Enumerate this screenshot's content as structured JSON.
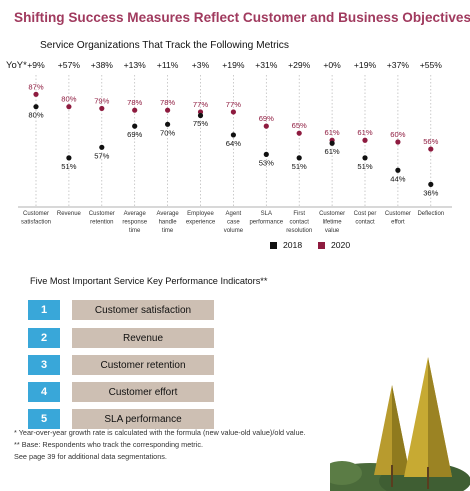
{
  "header": {
    "title": "Shifting Success Measures Reflect Customer and Business Objectives",
    "subtitle": "Service Organizations That Track the Following Metrics"
  },
  "chart_data": {
    "type": "scatter",
    "title": "Service Organizations That Track the Following Metrics",
    "yoy_label": "YoY*",
    "categories": [
      [
        "Customer",
        "satisfaction"
      ],
      [
        "Revenue"
      ],
      [
        "Customer",
        "retention"
      ],
      [
        "Average",
        "response",
        "time"
      ],
      [
        "Average",
        "handle",
        "time"
      ],
      [
        "Employee",
        "experience"
      ],
      [
        "Agent",
        "case",
        "volume"
      ],
      [
        "SLA",
        "performance"
      ],
      [
        "First",
        "contact",
        "resolution"
      ],
      [
        "Customer",
        "lifetime",
        "value"
      ],
      [
        "Cost per",
        "contact"
      ],
      [
        "Customer",
        "effort"
      ],
      [
        "Deflection"
      ]
    ],
    "yoy": [
      "+9%",
      "+57%",
      "+38%",
      "+13%",
      "+11%",
      "+3%",
      "+19%",
      "+31%",
      "+29%",
      "+0%",
      "+19%",
      "+37%",
      "+55%"
    ],
    "series": [
      {
        "name": "2018",
        "color": "#111111",
        "values": [
          80,
          51,
          57,
          69,
          70,
          75,
          64,
          53,
          51,
          61,
          51,
          44,
          36
        ]
      },
      {
        "name": "2020",
        "color": "#8e1b3f",
        "values": [
          87,
          80,
          79,
          78,
          78,
          77,
          77,
          69,
          65,
          61,
          61,
          60,
          56
        ]
      }
    ],
    "ylim": [
      30,
      90
    ],
    "grid": "vertical dotted",
    "legend": "bottom-right"
  },
  "kpi": {
    "title": "Five Most Important Service Key Performance Indicators**",
    "items": [
      {
        "rank": "1",
        "label": "Customer satisfaction"
      },
      {
        "rank": "2",
        "label": "Revenue"
      },
      {
        "rank": "3",
        "label": "Customer retention"
      },
      {
        "rank": "4",
        "label": "Customer effort"
      },
      {
        "rank": "5",
        "label": "SLA performance"
      }
    ]
  },
  "footnotes": {
    "yoy": "* Year-over-year growth rate is calculated with the formula (new value-old value)/old value.",
    "base": "** Base: Respondents who track the corresponding metric.",
    "see": "See page 39 for additional data segmentations."
  },
  "colors": {
    "accent": "#a03a5e",
    "dot_2018": "#111111",
    "dot_2020": "#8e1b3f",
    "rank_box": "#39a7d9",
    "label_box": "#cdbfb3"
  }
}
